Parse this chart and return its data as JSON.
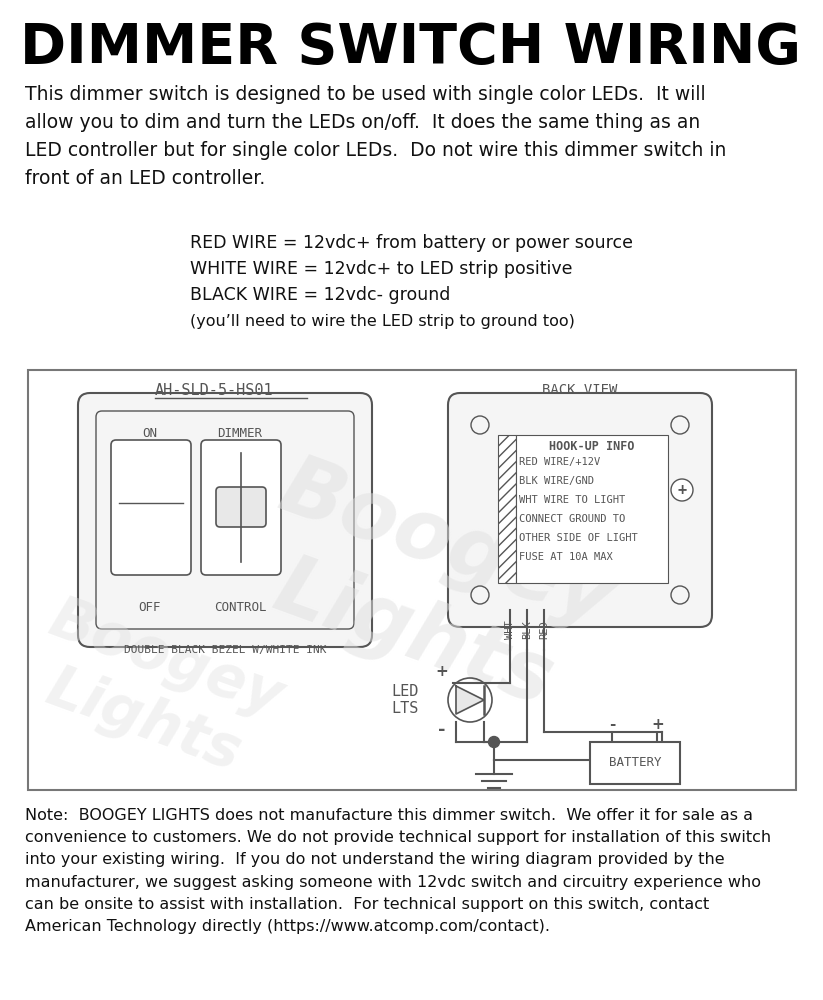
{
  "title": "DIMMER SWITCH WIRING",
  "intro_text": "This dimmer switch is designed to be used with single color LEDs.  It will\nallow you to dim and turn the LEDs on/off.  It does the same thing as an\nLED controller but for single color LEDs.  Do not wire this dimmer switch in\nfront of an LED controller.",
  "wire_info": [
    "RED WIRE = 12vdc+ from battery or power source",
    "WHITE WIRE = 12vdc+ to LED strip positive",
    "BLACK WIRE = 12vdc- ground",
    "(you’ll need to wire the LED strip to ground too)"
  ],
  "note_text": "Note:  BOOGEY LIGHTS does not manufacture this dimmer switch.  We offer it for sale as a\nconvenience to customers. We do not provide technical support for installation of this switch\ninto your existing wiring.  If you do not understand the wiring diagram provided by the\nmanufacturer, we suggest asking someone with 12vdc switch and circuitry experience who\ncan be onsite to assist with installation.  For technical support on this switch, contact\nAmerican Technology directly (https://www.atcomp.com/contact).",
  "switch_label": "AH-SLD-5-HS01",
  "back_view_label": "BACK VIEW",
  "hookup_label": "HOOK-UP INFO",
  "hookup_lines": [
    "RED WIRE/+12V",
    "BLK WIRE/GND",
    "WHT WIRE TO LIGHT",
    "CONNECT GROUND TO",
    "OTHER SIDE OF LIGHT",
    "FUSE AT 10A MAX"
  ],
  "bezel_label": "DOUBLE BLACK BEZEL W/WHITE INK",
  "wire_labels": [
    "WHT",
    "BLK",
    "RED"
  ],
  "led_label": "LED\nLTS",
  "battery_label": "BATTERY",
  "bg_color": "#ffffff",
  "diagram_border_color": "#777777",
  "line_color": "#555555",
  "text_color": "#111111",
  "light_gray": "#aaaaaa",
  "watermark_color": "#e0e0e0"
}
